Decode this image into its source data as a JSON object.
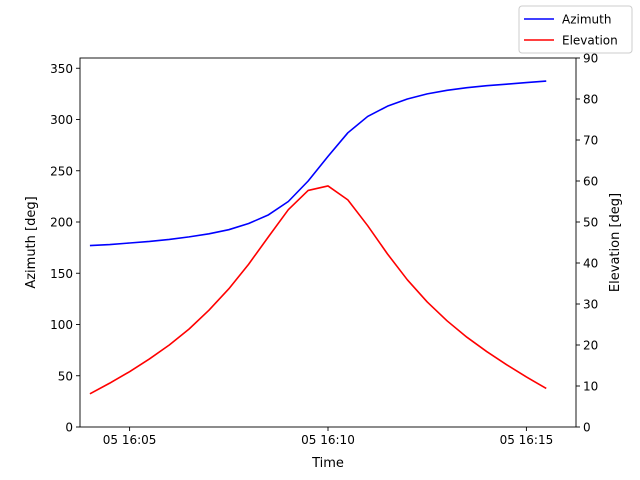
{
  "chart_data": {
    "type": "line",
    "xlabel": "Time",
    "ylabel_left": "Azimuth [deg]",
    "ylabel_right": "Elevation [deg]",
    "xlim": [
      "16:03:45",
      "16:16:15"
    ],
    "ylim_left": [
      0,
      360
    ],
    "ylim_right": [
      0,
      90
    ],
    "x_ticks": [
      {
        "time": "16:05:00",
        "label": "05 16:05"
      },
      {
        "time": "16:10:00",
        "label": "05 16:10"
      },
      {
        "time": "16:15:00",
        "label": "05 16:15"
      }
    ],
    "y_ticks_left": [
      0,
      50,
      100,
      150,
      200,
      250,
      300,
      350
    ],
    "y_ticks_right": [
      0,
      10,
      20,
      30,
      40,
      50,
      60,
      70,
      80,
      90
    ],
    "grid": false,
    "legend": {
      "placement": "top-right",
      "entries": [
        "Azimuth",
        "Elevation"
      ]
    },
    "series": [
      {
        "name": "Azimuth",
        "axis": "left",
        "color": "#0000ff",
        "x": [
          "16:04:00",
          "16:04:30",
          "16:05:00",
          "16:05:30",
          "16:06:00",
          "16:06:30",
          "16:07:00",
          "16:07:30",
          "16:08:00",
          "16:08:30",
          "16:09:00",
          "16:09:30",
          "16:10:00",
          "16:10:30",
          "16:11:00",
          "16:11:30",
          "16:12:00",
          "16:12:30",
          "16:13:00",
          "16:13:30",
          "16:14:00",
          "16:14:30",
          "16:15:00",
          "16:15:30"
        ],
        "values": [
          177,
          178,
          179.5,
          181,
          183,
          185.5,
          188.5,
          192.5,
          198.5,
          207,
          220,
          240,
          264,
          287,
          303,
          313,
          320,
          325,
          328.5,
          331,
          333,
          334.5,
          336,
          337.5
        ]
      },
      {
        "name": "Elevation",
        "axis": "right",
        "color": "#ff0000",
        "x": [
          "16:04:00",
          "16:04:30",
          "16:05:00",
          "16:05:30",
          "16:06:00",
          "16:06:30",
          "16:07:00",
          "16:07:30",
          "16:08:00",
          "16:08:30",
          "16:09:00",
          "16:09:30",
          "16:10:00",
          "16:10:30",
          "16:11:00",
          "16:11:30",
          "16:12:00",
          "16:12:30",
          "16:13:00",
          "16:13:30",
          "16:14:00",
          "16:14:30",
          "16:15:00",
          "16:15:30"
        ],
        "values": [
          8.1,
          10.7,
          13.5,
          16.6,
          20,
          23.9,
          28.5,
          33.7,
          39.7,
          46.4,
          53,
          57.7,
          58.8,
          55.4,
          49.1,
          42.2,
          35.9,
          30.5,
          25.9,
          21.9,
          18.4,
          15.2,
          12.2,
          9.4
        ]
      }
    ]
  }
}
